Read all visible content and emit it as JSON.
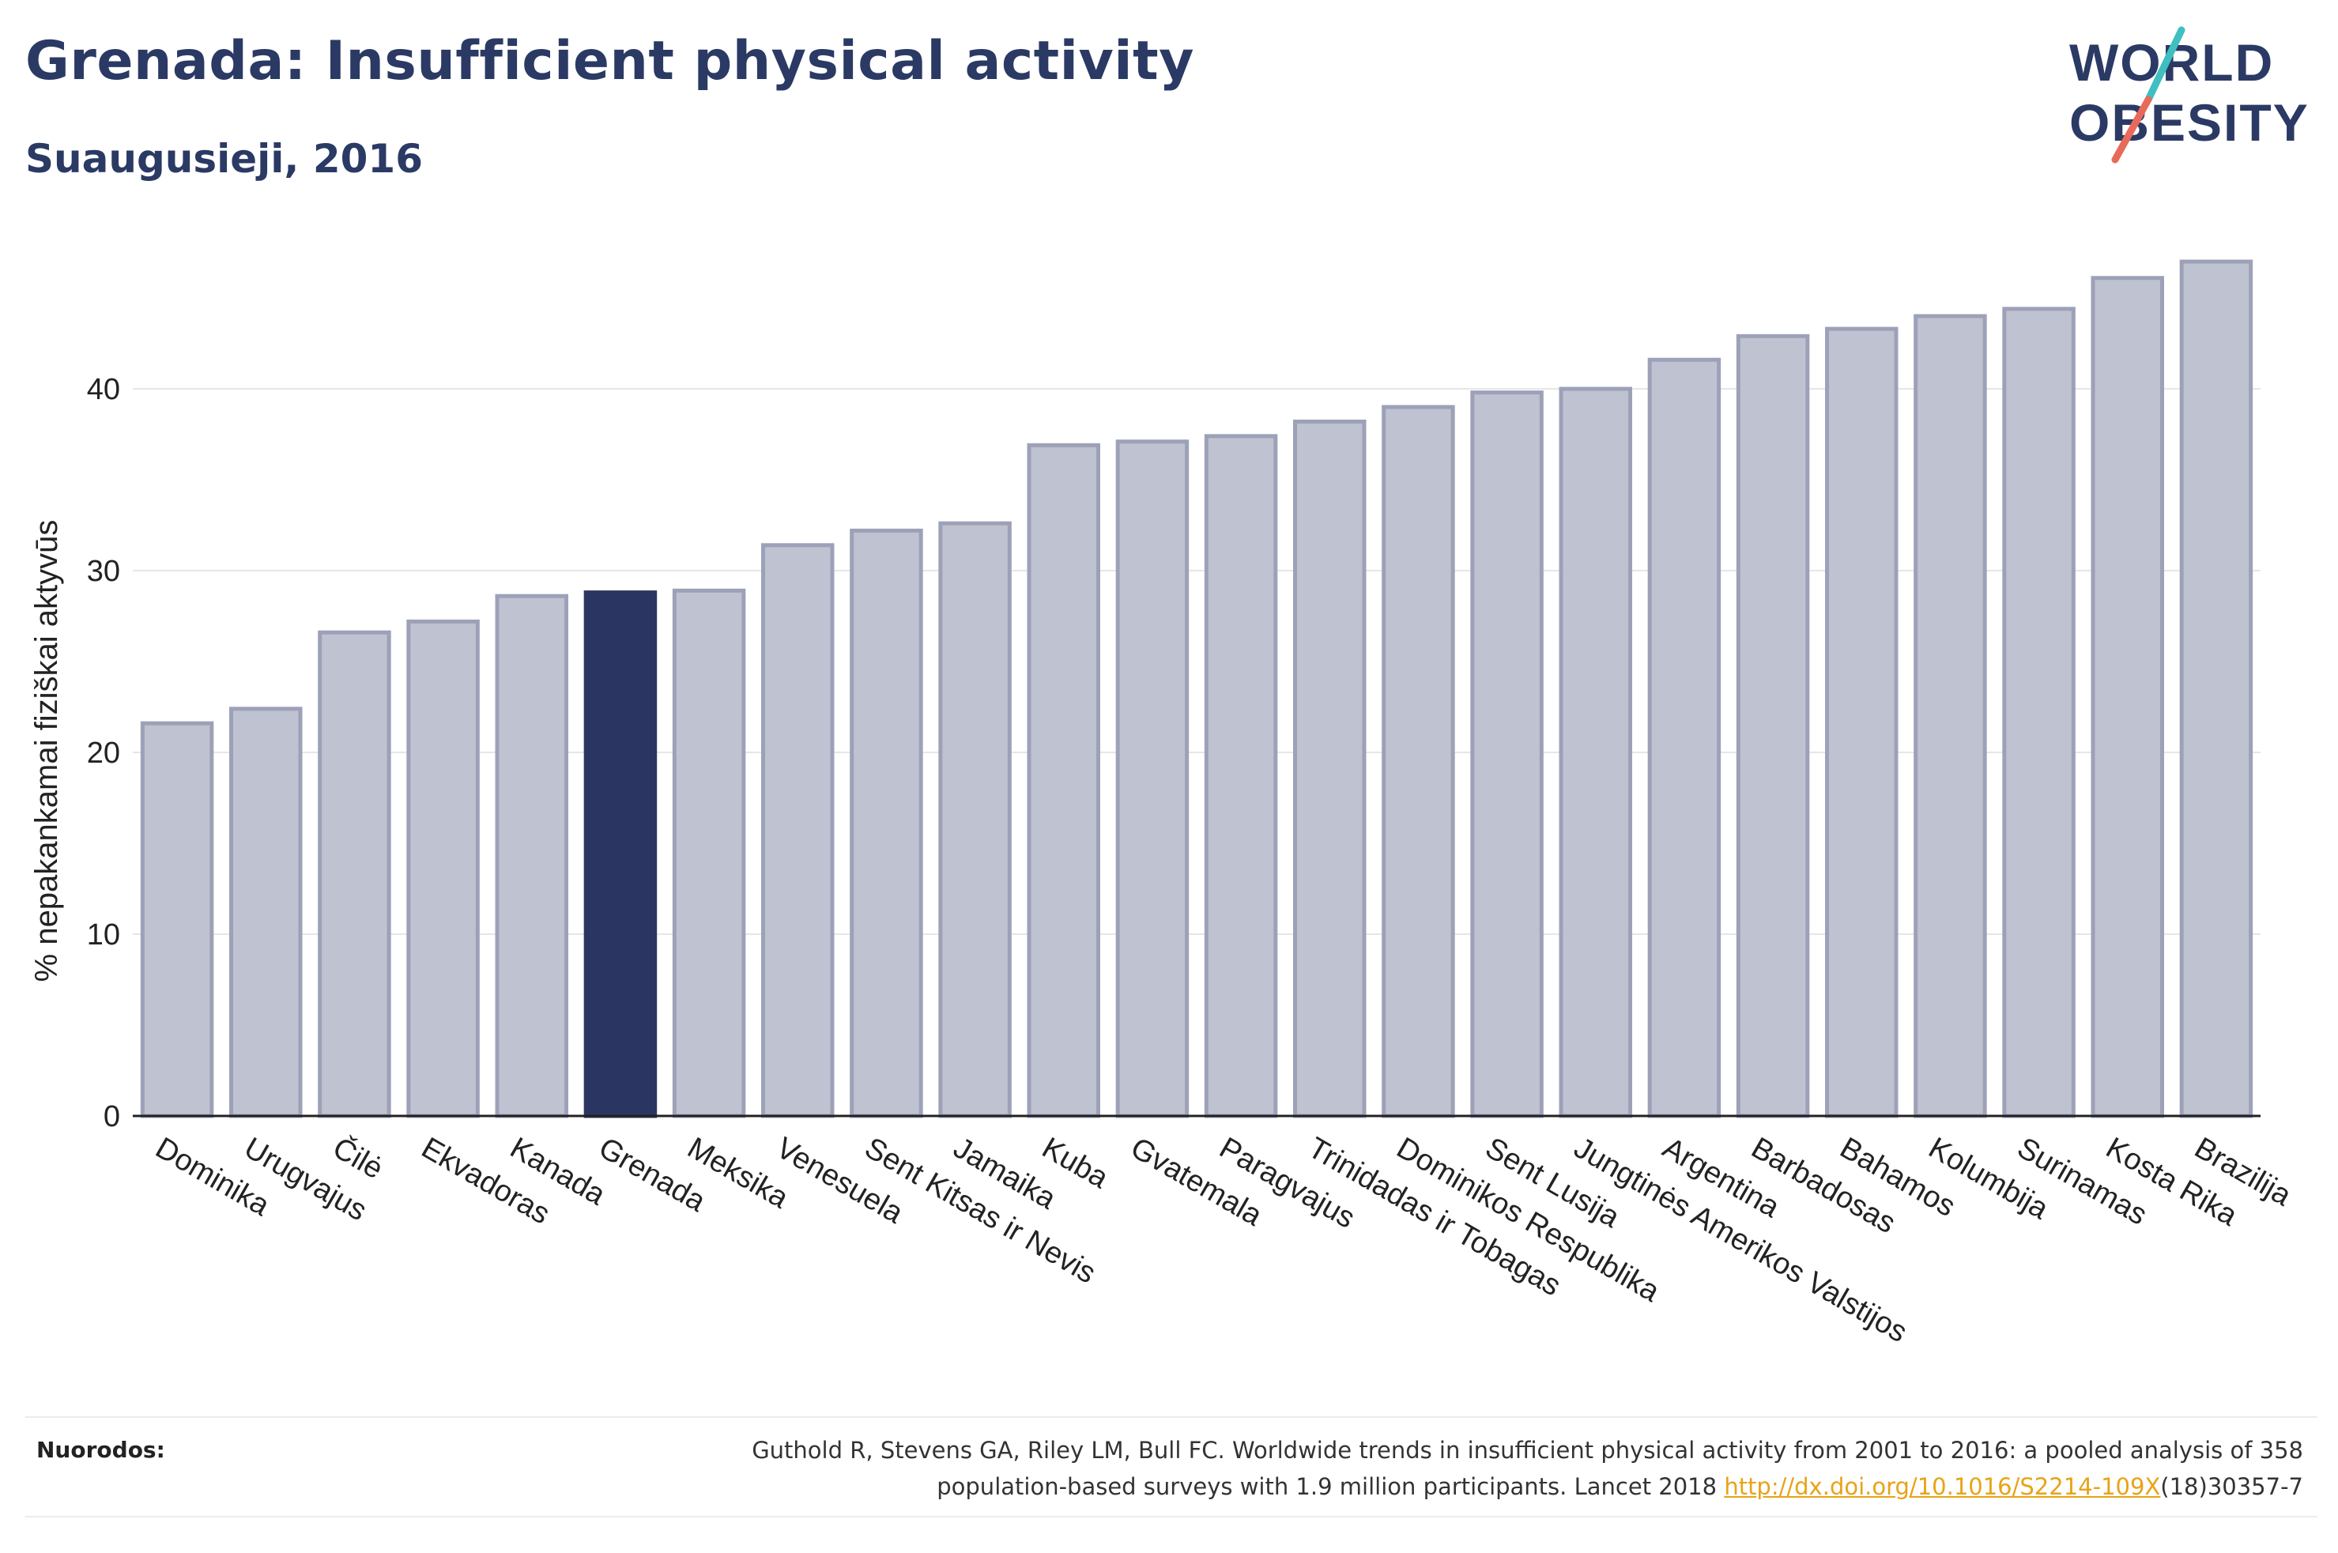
{
  "header": {
    "title": "Grenada: Insufficient physical activity",
    "subtitle": "Suaugusieji, 2016"
  },
  "logo": {
    "line1": "WORLD",
    "line2": "OBESITY"
  },
  "colors": {
    "bar": "#bfc2d0",
    "bar_border": "#9da1b8",
    "highlight": "#2b3561",
    "title": "#2b3a64",
    "link": "#e8a317"
  },
  "chart_data": {
    "type": "bar",
    "title": "Grenada: Insufficient physical activity",
    "subtitle": "Suaugusieji, 2016",
    "xlabel": "",
    "ylabel": "% nepakankamai fiziškai aktyvūs",
    "ylim": [
      0,
      50
    ],
    "yticks": [
      0,
      10,
      20,
      30,
      40
    ],
    "grid": true,
    "highlight": "Grenada",
    "categories": [
      "Dominika",
      "Urugvajus",
      "Čilė",
      "Ekvadoras",
      "Kanada",
      "Grenada",
      "Meksika",
      "Venesuela",
      "Sent Kitsas ir Nevis",
      "Jamaika",
      "Kuba",
      "Gvatemala",
      "Paragvajus",
      "Trinidadas ir Tobagas",
      "Dominikos Respublika",
      "Sent Lusija",
      "Jungtinės Amerikos Valstijos",
      "Argentina",
      "Barbadosas",
      "Bahamos",
      "Kolumbija",
      "Surinamas",
      "Kosta Rika",
      "Brazilija"
    ],
    "values": [
      21.6,
      22.4,
      26.6,
      27.2,
      28.6,
      28.8,
      28.9,
      31.4,
      32.2,
      32.6,
      36.9,
      37.1,
      37.4,
      38.2,
      39.0,
      39.8,
      40.0,
      41.6,
      42.9,
      43.3,
      44.0,
      44.4,
      46.1,
      47.0
    ]
  },
  "footer": {
    "label": "Nuorodos:",
    "text_line1": "Guthold R, Stevens GA, Riley LM, Bull FC. Worldwide trends in insufficient physical activity from 2001 to 2016: a pooled analysis of 358",
    "text_line2_prefix": "population-based surveys with 1.9 million participants. Lancet 2018 ",
    "link": "http://dx.doi.org/10.1016/S2214-109X",
    "text_line2_suffix": "(18)30357-7"
  }
}
